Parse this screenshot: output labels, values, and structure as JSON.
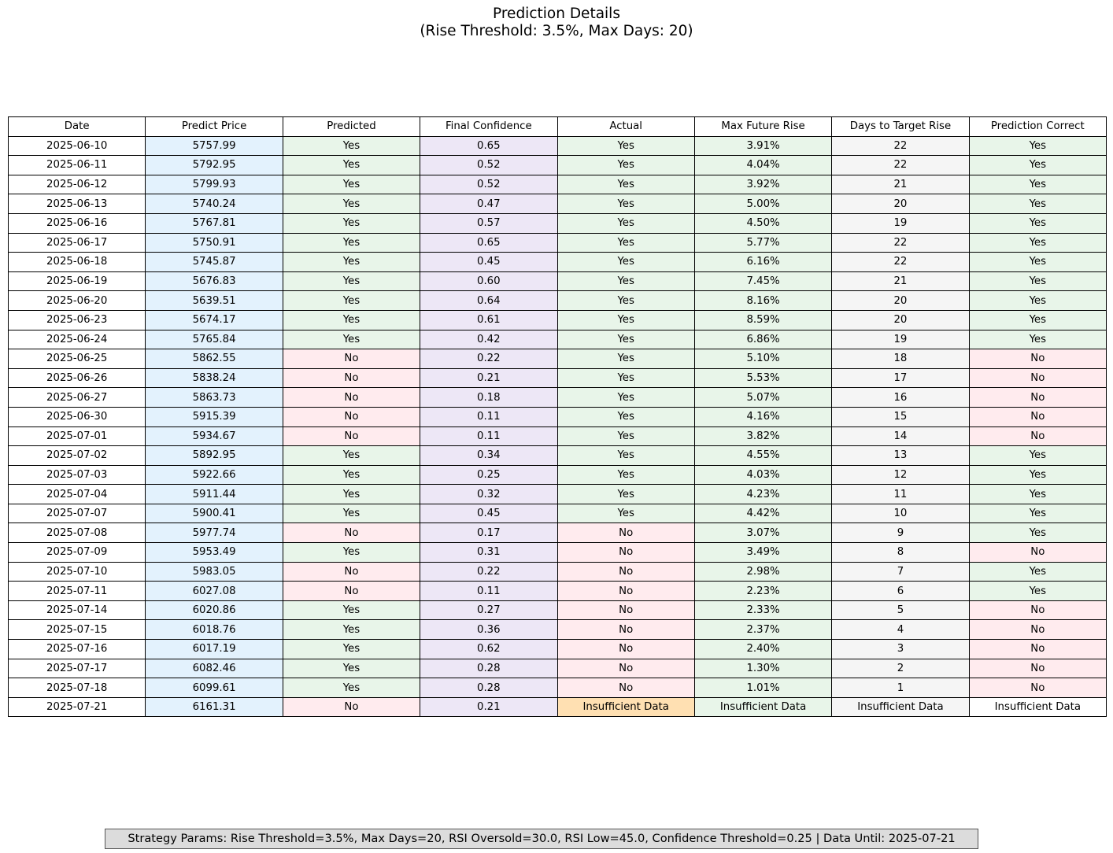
{
  "title_line1": "Prediction Details",
  "title_line2": "(Rise Threshold: 3.5%, Max Days: 20)",
  "colors": {
    "date": "#ffffff",
    "predict_price": "#e3f2fd",
    "final_confidence": "#ede7f6",
    "days_to_target": "#f5f5f5",
    "yes": "#e8f5e9",
    "no": "#ffebee",
    "insufficient_actual": "#ffe0b2"
  },
  "chart_data": {
    "type": "table",
    "columns": [
      "Date",
      "Predict Price",
      "Predicted",
      "Final Confidence",
      "Actual",
      "Max Future Rise",
      "Days to Target Rise",
      "Prediction Correct"
    ],
    "rows": [
      [
        "2025-06-10",
        "5757.99",
        "Yes",
        "0.65",
        "Yes",
        "3.91%",
        "22",
        "Yes"
      ],
      [
        "2025-06-11",
        "5792.95",
        "Yes",
        "0.52",
        "Yes",
        "4.04%",
        "22",
        "Yes"
      ],
      [
        "2025-06-12",
        "5799.93",
        "Yes",
        "0.52",
        "Yes",
        "3.92%",
        "21",
        "Yes"
      ],
      [
        "2025-06-13",
        "5740.24",
        "Yes",
        "0.47",
        "Yes",
        "5.00%",
        "20",
        "Yes"
      ],
      [
        "2025-06-16",
        "5767.81",
        "Yes",
        "0.57",
        "Yes",
        "4.50%",
        "19",
        "Yes"
      ],
      [
        "2025-06-17",
        "5750.91",
        "Yes",
        "0.65",
        "Yes",
        "5.77%",
        "22",
        "Yes"
      ],
      [
        "2025-06-18",
        "5745.87",
        "Yes",
        "0.45",
        "Yes",
        "6.16%",
        "22",
        "Yes"
      ],
      [
        "2025-06-19",
        "5676.83",
        "Yes",
        "0.60",
        "Yes",
        "7.45%",
        "21",
        "Yes"
      ],
      [
        "2025-06-20",
        "5639.51",
        "Yes",
        "0.64",
        "Yes",
        "8.16%",
        "20",
        "Yes"
      ],
      [
        "2025-06-23",
        "5674.17",
        "Yes",
        "0.61",
        "Yes",
        "8.59%",
        "20",
        "Yes"
      ],
      [
        "2025-06-24",
        "5765.84",
        "Yes",
        "0.42",
        "Yes",
        "6.86%",
        "19",
        "Yes"
      ],
      [
        "2025-06-25",
        "5862.55",
        "No",
        "0.22",
        "Yes",
        "5.10%",
        "18",
        "No"
      ],
      [
        "2025-06-26",
        "5838.24",
        "No",
        "0.21",
        "Yes",
        "5.53%",
        "17",
        "No"
      ],
      [
        "2025-06-27",
        "5863.73",
        "No",
        "0.18",
        "Yes",
        "5.07%",
        "16",
        "No"
      ],
      [
        "2025-06-30",
        "5915.39",
        "No",
        "0.11",
        "Yes",
        "4.16%",
        "15",
        "No"
      ],
      [
        "2025-07-01",
        "5934.67",
        "No",
        "0.11",
        "Yes",
        "3.82%",
        "14",
        "No"
      ],
      [
        "2025-07-02",
        "5892.95",
        "Yes",
        "0.34",
        "Yes",
        "4.55%",
        "13",
        "Yes"
      ],
      [
        "2025-07-03",
        "5922.66",
        "Yes",
        "0.25",
        "Yes",
        "4.03%",
        "12",
        "Yes"
      ],
      [
        "2025-07-04",
        "5911.44",
        "Yes",
        "0.32",
        "Yes",
        "4.23%",
        "11",
        "Yes"
      ],
      [
        "2025-07-07",
        "5900.41",
        "Yes",
        "0.45",
        "Yes",
        "4.42%",
        "10",
        "Yes"
      ],
      [
        "2025-07-08",
        "5977.74",
        "No",
        "0.17",
        "No",
        "3.07%",
        "9",
        "Yes"
      ],
      [
        "2025-07-09",
        "5953.49",
        "Yes",
        "0.31",
        "No",
        "3.49%",
        "8",
        "No"
      ],
      [
        "2025-07-10",
        "5983.05",
        "No",
        "0.22",
        "No",
        "2.98%",
        "7",
        "Yes"
      ],
      [
        "2025-07-11",
        "6027.08",
        "No",
        "0.11",
        "No",
        "2.23%",
        "6",
        "Yes"
      ],
      [
        "2025-07-14",
        "6020.86",
        "Yes",
        "0.27",
        "No",
        "2.33%",
        "5",
        "No"
      ],
      [
        "2025-07-15",
        "6018.76",
        "Yes",
        "0.36",
        "No",
        "2.37%",
        "4",
        "No"
      ],
      [
        "2025-07-16",
        "6017.19",
        "Yes",
        "0.62",
        "No",
        "2.40%",
        "3",
        "No"
      ],
      [
        "2025-07-17",
        "6082.46",
        "Yes",
        "0.28",
        "No",
        "1.30%",
        "2",
        "No"
      ],
      [
        "2025-07-18",
        "6099.61",
        "Yes",
        "0.28",
        "No",
        "1.01%",
        "1",
        "No"
      ],
      [
        "2025-07-21",
        "6161.31",
        "No",
        "0.21",
        "Insufficient Data",
        "Insufficient Data",
        "Insufficient Data",
        "Insufficient Data"
      ]
    ]
  },
  "footer_text": "Strategy Params: Rise Threshold=3.5%, Max Days=20, RSI Oversold=30.0, RSI Low=45.0, Confidence Threshold=0.25 | Data Until: 2025-07-21"
}
